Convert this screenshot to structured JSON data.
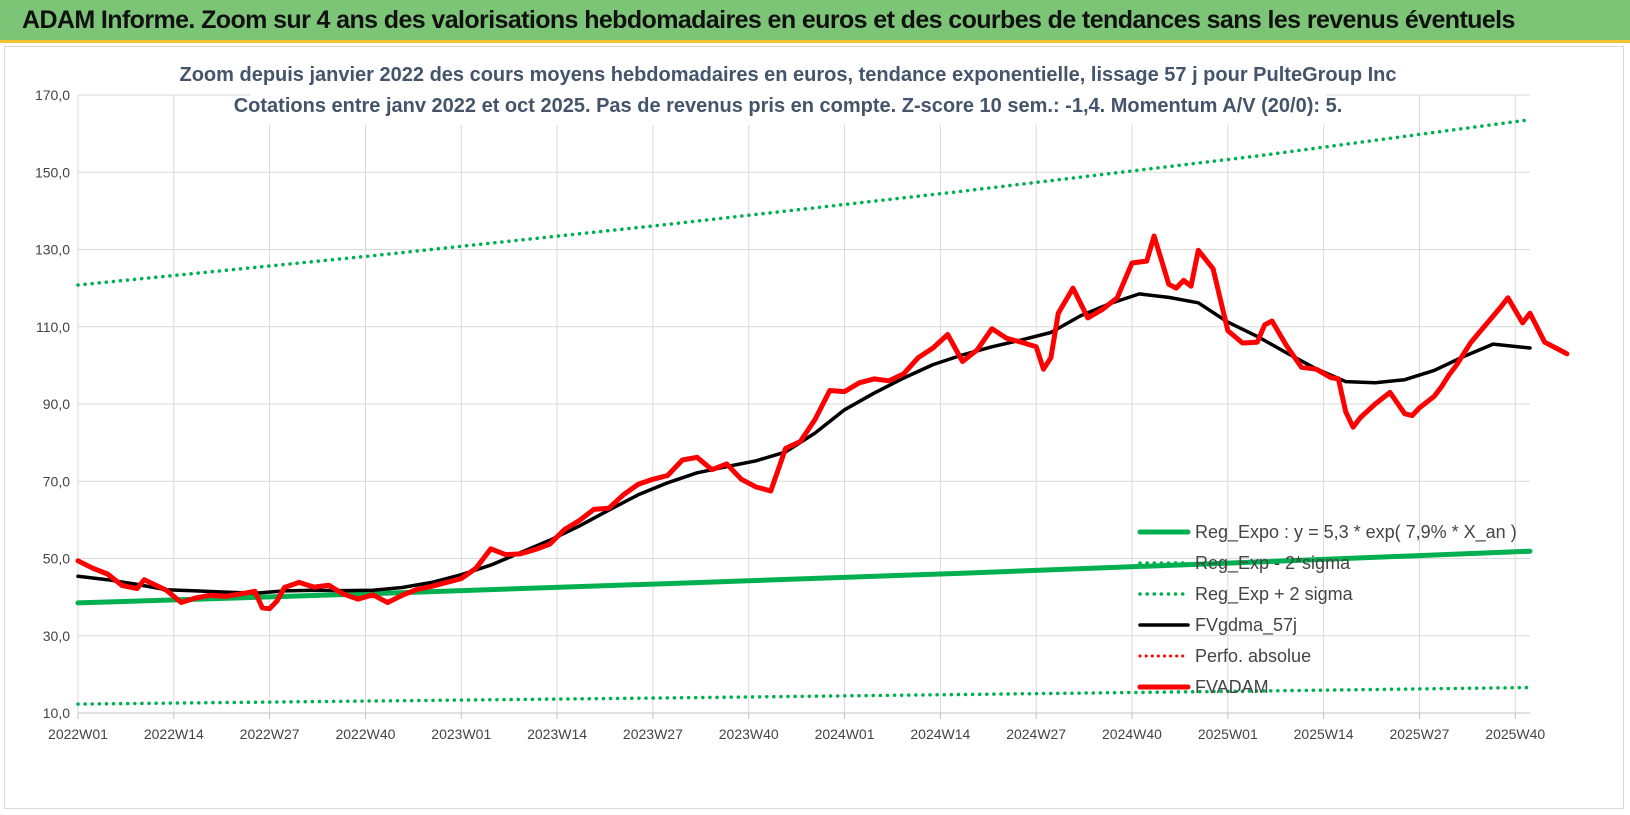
{
  "header": {
    "title": "ADAM Informe. Zoom sur 4 ans des valorisations hebdomadaires en euros et des courbes de tendances sans les revenus éventuels"
  },
  "chart_data": {
    "type": "line",
    "title_line1": "Zoom depuis janvier 2022 des cours moyens hebdomadaires en euros, tendance exponentielle, lissage 57 j pour PulteGroup Inc",
    "title_line2": "Cotations entre janv 2022 et oct 2025. Pas de revenus pris en compte. Z-score 10 sem.: -1,4.  Momentum A/V (20/0): 5.",
    "xlabel": "",
    "ylabel": "",
    "ylim": [
      10,
      170
    ],
    "y_ticks": [
      "170,0",
      "150,0",
      "130,0",
      "110,0",
      "90,0",
      "70,0",
      "50,0",
      "30,0",
      "10,0"
    ],
    "x_range_weeks": [
      0,
      197
    ],
    "x_ticks": [
      {
        "label": "2022W01",
        "week": 0
      },
      {
        "label": "2022W14",
        "week": 13
      },
      {
        "label": "2022W27",
        "week": 26
      },
      {
        "label": "2022W40",
        "week": 39
      },
      {
        "label": "2023W01",
        "week": 52
      },
      {
        "label": "2023W14",
        "week": 65
      },
      {
        "label": "2023W27",
        "week": 78
      },
      {
        "label": "2023W40",
        "week": 91
      },
      {
        "label": "2024W01",
        "week": 104
      },
      {
        "label": "2024W14",
        "week": 117
      },
      {
        "label": "2024W27",
        "week": 130
      },
      {
        "label": "2024W40",
        "week": 143
      },
      {
        "label": "2025W01",
        "week": 156
      },
      {
        "label": "2025W14",
        "week": 169
      },
      {
        "label": "2025W27",
        "week": 182
      },
      {
        "label": "2025W40",
        "week": 195
      }
    ],
    "grid": true,
    "legend_position": "bottom-right",
    "series": [
      {
        "name": "Reg_Expo : y = 5,3 * exp( 7,9% *  X_an )",
        "color": "#00b050",
        "style": "solid",
        "width": 5,
        "points": [
          [
            0,
            38.5
          ],
          [
            40,
            40.9
          ],
          [
            80,
            43.5
          ],
          [
            120,
            46.2
          ],
          [
            160,
            49.1
          ],
          [
            197,
            51.9
          ]
        ]
      },
      {
        "name": "Reg_Exp - 2*sigma",
        "color": "#00b050",
        "style": "dotted",
        "width": 3.5,
        "points": [
          [
            0,
            12.3
          ],
          [
            40,
            13.1
          ],
          [
            80,
            13.9
          ],
          [
            120,
            14.8
          ],
          [
            160,
            15.7
          ],
          [
            197,
            16.6
          ]
        ]
      },
      {
        "name": "Reg_Exp + 2 sigma",
        "color": "#00b050",
        "style": "dotted",
        "width": 3.5,
        "points": [
          [
            0,
            120.8
          ],
          [
            40,
            128.4
          ],
          [
            80,
            136.5
          ],
          [
            120,
            145.1
          ],
          [
            160,
            154.2
          ],
          [
            197,
            163.6
          ]
        ]
      },
      {
        "name": "FVgdma_57j",
        "color": "#000000",
        "style": "solid",
        "width": 3.5,
        "points": [
          [
            0,
            45.4
          ],
          [
            4,
            44.5
          ],
          [
            8,
            43.3
          ],
          [
            12,
            41.9
          ],
          [
            16,
            41.6
          ],
          [
            20,
            41.3
          ],
          [
            24,
            41.0
          ],
          [
            28,
            41.6
          ],
          [
            32,
            41.8
          ],
          [
            36,
            41.7
          ],
          [
            40,
            41.8
          ],
          [
            44,
            42.5
          ],
          [
            48,
            43.8
          ],
          [
            52,
            45.8
          ],
          [
            56,
            48.3
          ],
          [
            60,
            51.5
          ],
          [
            64,
            54.7
          ],
          [
            68,
            58.4
          ],
          [
            72,
            62.5
          ],
          [
            76,
            66.5
          ],
          [
            80,
            69.6
          ],
          [
            84,
            72.2
          ],
          [
            88,
            73.8
          ],
          [
            92,
            75.3
          ],
          [
            96,
            77.6
          ],
          [
            100,
            82.5
          ],
          [
            104,
            88.5
          ],
          [
            108,
            92.8
          ],
          [
            112,
            96.7
          ],
          [
            116,
            100.2
          ],
          [
            120,
            102.7
          ],
          [
            124,
            104.8
          ],
          [
            128,
            106.6
          ],
          [
            132,
            108.5
          ],
          [
            136,
            112.8
          ],
          [
            140,
            116.0
          ],
          [
            144,
            118.5
          ],
          [
            148,
            117.6
          ],
          [
            152,
            116.2
          ],
          [
            156,
            111.2
          ],
          [
            160,
            107.5
          ],
          [
            164,
            103.2
          ],
          [
            168,
            99.1
          ],
          [
            172,
            95.8
          ],
          [
            176,
            95.5
          ],
          [
            180,
            96.3
          ],
          [
            184,
            98.7
          ],
          [
            188,
            102.3
          ],
          [
            192,
            105.5
          ],
          [
            197,
            104.5
          ]
        ]
      },
      {
        "name": "Perfo. absolue",
        "color": "#ff0000",
        "style": "dotted",
        "width": 3,
        "points": []
      },
      {
        "name": "FVADAM",
        "color": "#ff0000",
        "style": "solid",
        "width": 5,
        "points": [
          [
            0,
            49.4
          ],
          [
            2,
            47.5
          ],
          [
            4,
            46.0
          ],
          [
            6,
            43.0
          ],
          [
            8,
            42.2
          ],
          [
            9,
            44.5
          ],
          [
            12,
            41.8
          ],
          [
            14,
            38.6
          ],
          [
            16,
            39.8
          ],
          [
            18,
            40.5
          ],
          [
            20,
            40.2
          ],
          [
            22,
            40.8
          ],
          [
            24,
            41.5
          ],
          [
            25,
            37.2
          ],
          [
            26,
            37.0
          ],
          [
            27,
            39.0
          ],
          [
            28,
            42.5
          ],
          [
            30,
            43.8
          ],
          [
            32,
            42.6
          ],
          [
            34,
            43.1
          ],
          [
            36,
            40.8
          ],
          [
            38,
            39.5
          ],
          [
            40,
            40.6
          ],
          [
            42,
            38.6
          ],
          [
            44,
            40.5
          ],
          [
            46,
            42.0
          ],
          [
            48,
            42.8
          ],
          [
            50,
            43.8
          ],
          [
            52,
            44.8
          ],
          [
            54,
            47.5
          ],
          [
            56,
            52.5
          ],
          [
            58,
            51.0
          ],
          [
            60,
            51.2
          ],
          [
            62,
            52.3
          ],
          [
            64,
            53.7
          ],
          [
            66,
            57.5
          ],
          [
            68,
            59.8
          ],
          [
            70,
            62.7
          ],
          [
            72,
            63.0
          ],
          [
            74,
            66.5
          ],
          [
            76,
            69.2
          ],
          [
            78,
            70.5
          ],
          [
            80,
            71.5
          ],
          [
            82,
            75.5
          ],
          [
            84,
            76.2
          ],
          [
            86,
            73.0
          ],
          [
            88,
            74.5
          ],
          [
            90,
            70.5
          ],
          [
            92,
            68.5
          ],
          [
            94,
            67.5
          ],
          [
            96,
            78.5
          ],
          [
            98,
            80.3
          ],
          [
            100,
            86.0
          ],
          [
            102,
            93.5
          ],
          [
            104,
            93.2
          ],
          [
            106,
            95.5
          ],
          [
            108,
            96.5
          ],
          [
            110,
            96.0
          ],
          [
            112,
            97.8
          ],
          [
            114,
            102.0
          ],
          [
            116,
            104.5
          ],
          [
            118,
            108.0
          ],
          [
            120,
            101.0
          ],
          [
            122,
            104.0
          ],
          [
            124,
            109.5
          ],
          [
            126,
            107.0
          ],
          [
            128,
            106.0
          ],
          [
            130,
            104.8
          ],
          [
            131,
            99.0
          ],
          [
            132,
            102.0
          ],
          [
            133,
            113.5
          ],
          [
            135,
            120.0
          ],
          [
            137,
            112.3
          ],
          [
            139,
            114.5
          ],
          [
            141,
            117.5
          ],
          [
            143,
            126.5
          ],
          [
            145,
            127.0
          ],
          [
            146,
            133.5
          ],
          [
            148,
            121.0
          ],
          [
            149,
            120.0
          ],
          [
            150,
            122.0
          ],
          [
            151,
            120.5
          ],
          [
            152,
            129.8
          ],
          [
            154,
            125.0
          ],
          [
            156,
            109.0
          ],
          [
            158,
            105.8
          ],
          [
            160,
            106.0
          ],
          [
            161,
            110.5
          ],
          [
            162,
            111.5
          ],
          [
            164,
            105.0
          ],
          [
            166,
            99.5
          ],
          [
            168,
            99.0
          ],
          [
            170,
            96.8
          ],
          [
            171,
            96.5
          ],
          [
            172,
            88.0
          ],
          [
            173,
            84.0
          ],
          [
            174,
            86.5
          ],
          [
            176,
            90.0
          ],
          [
            178,
            93.0
          ],
          [
            180,
            87.5
          ],
          [
            181,
            87.0
          ],
          [
            182,
            89.0
          ],
          [
            184,
            92.0
          ],
          [
            185,
            94.5
          ],
          [
            186,
            97.5
          ],
          [
            187,
            100.0
          ],
          [
            189,
            106.0
          ],
          [
            191,
            110.5
          ],
          [
            193,
            115.0
          ],
          [
            194,
            117.5
          ],
          [
            196,
            111.0
          ],
          [
            197,
            113.5
          ],
          [
            199,
            106.0
          ],
          [
            201,
            104.0
          ],
          [
            202,
            103.0
          ]
        ]
      }
    ]
  }
}
